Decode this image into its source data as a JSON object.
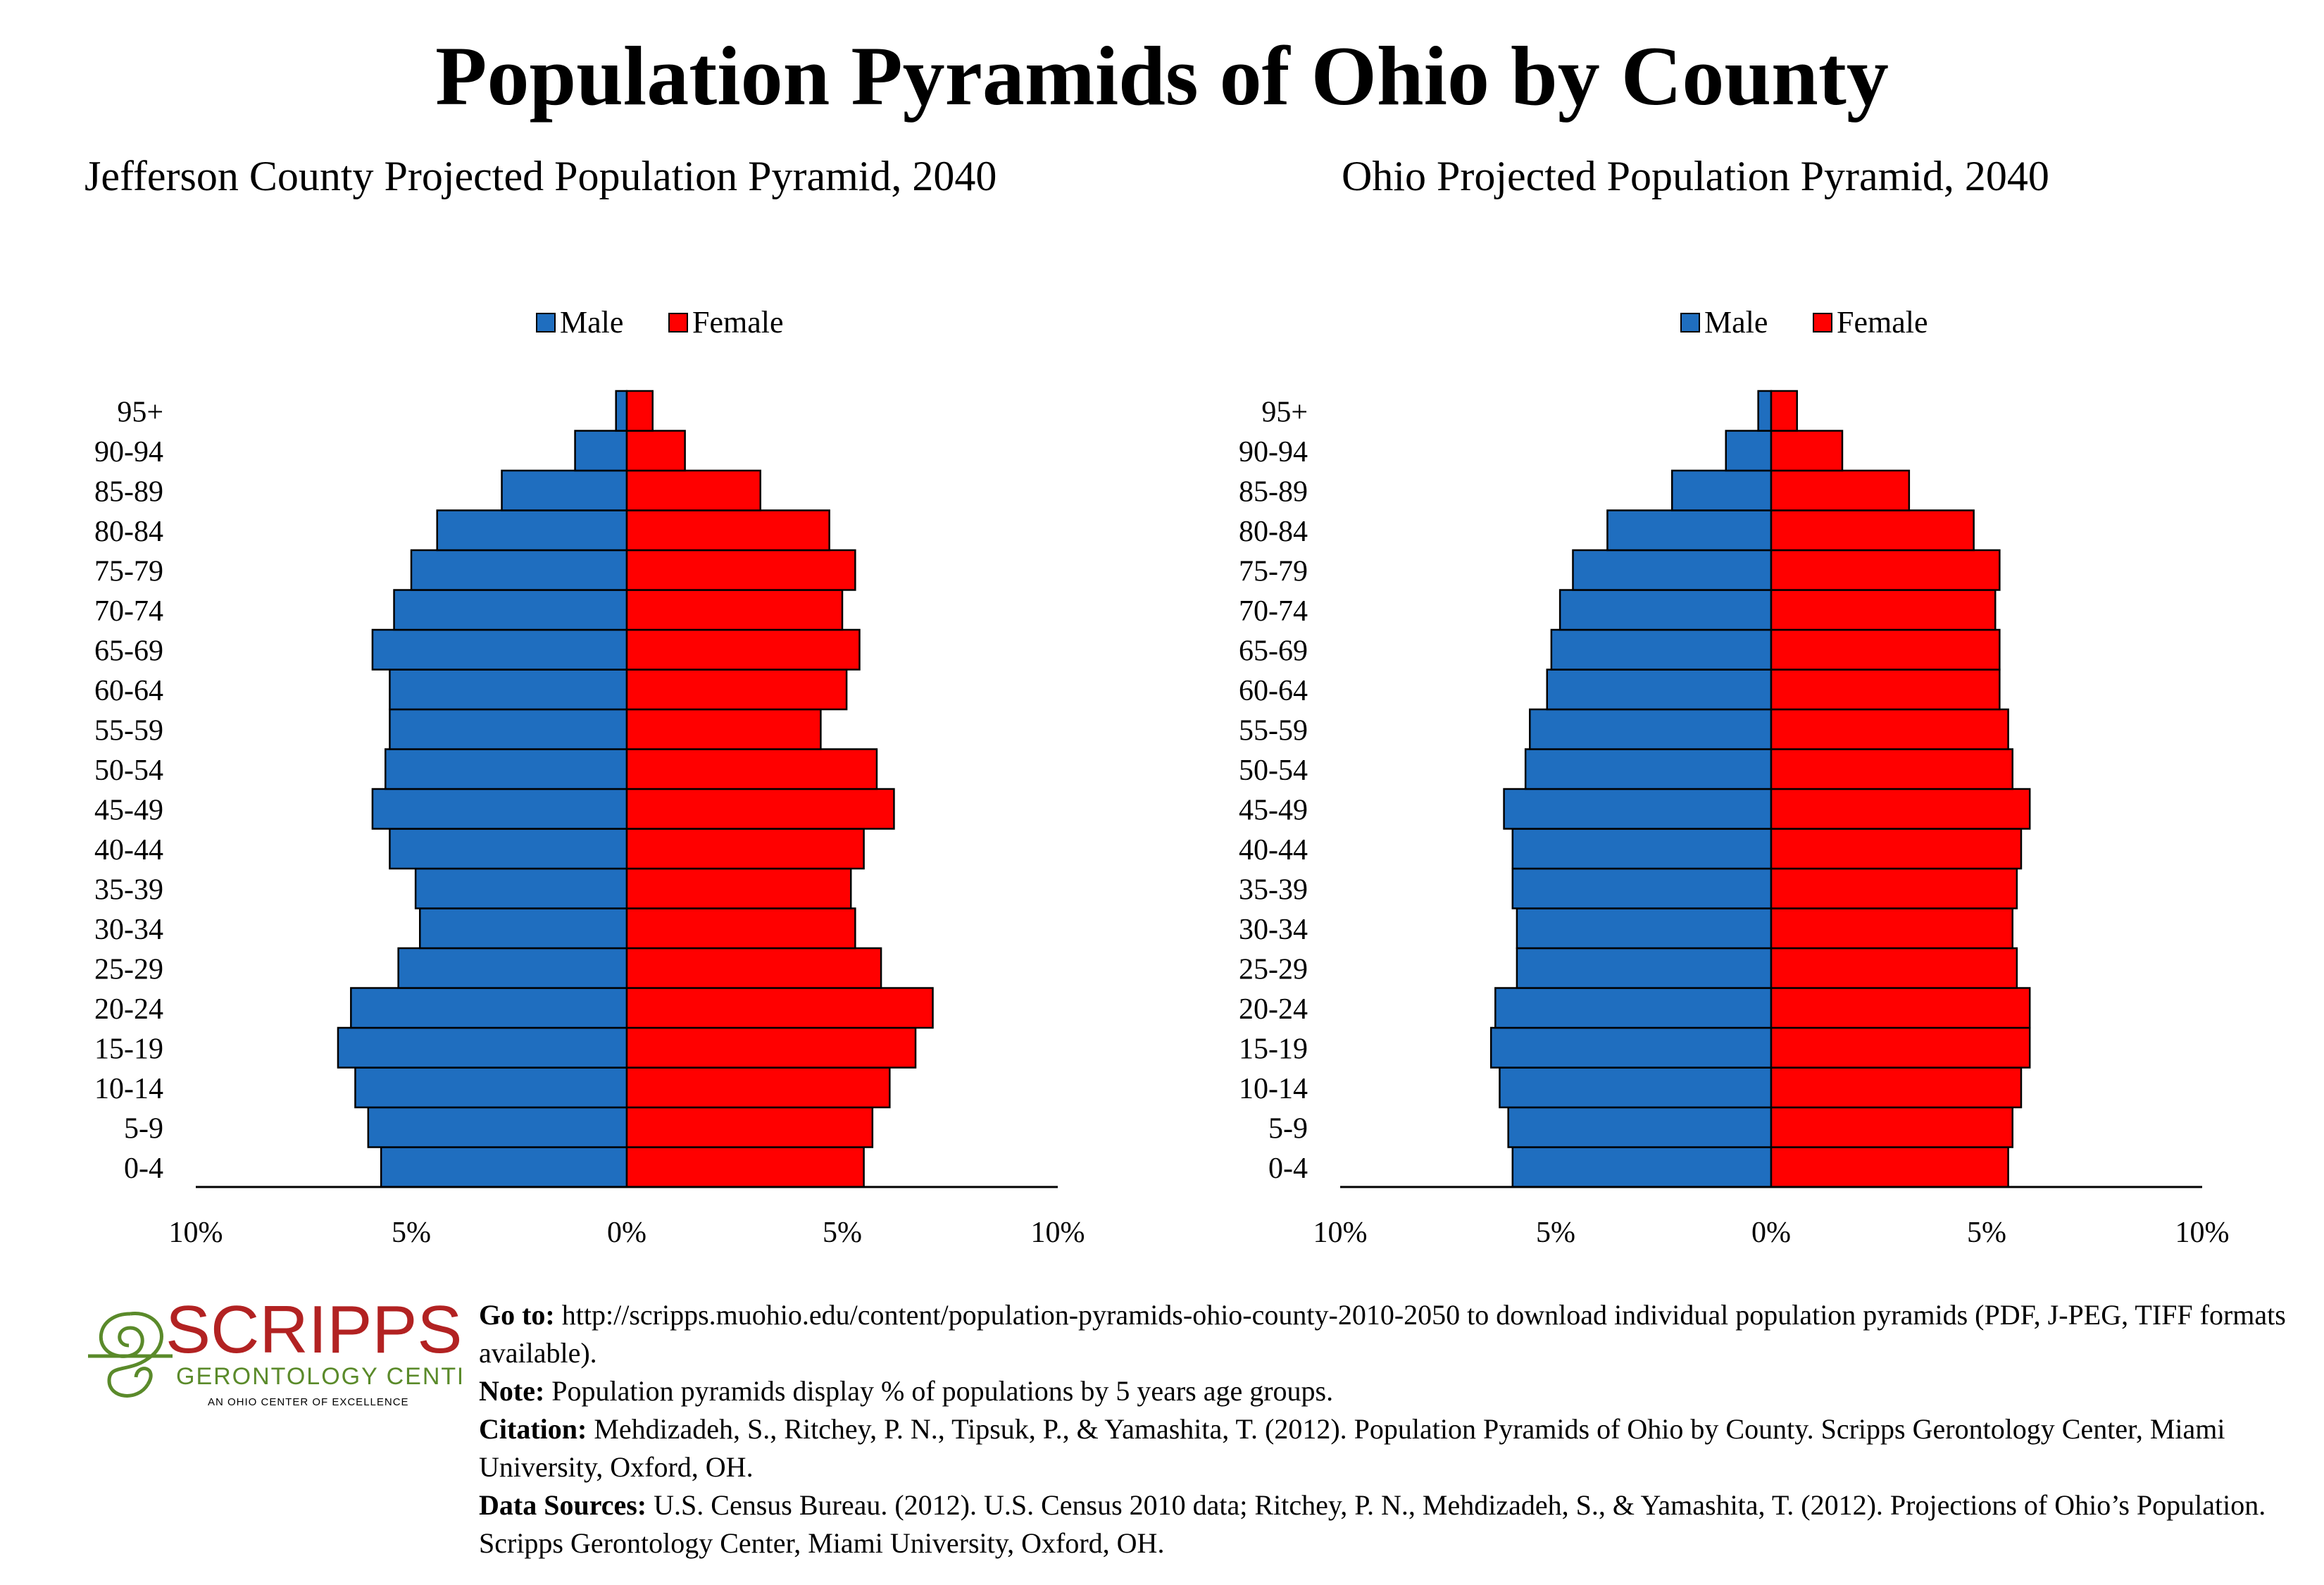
{
  "page": {
    "title": "Population Pyramids of Ohio by County"
  },
  "colors": {
    "male": "#1f6ebf",
    "female": "#ff0000",
    "logo": "#b22222",
    "logo_swirl": "#5a8a2a"
  },
  "chart_data": [
    {
      "type": "bar",
      "orientation": "horizontal-pyramid",
      "title": "Jefferson County Projected Population Pyramid, 2040",
      "legend": [
        "Male",
        "Female"
      ],
      "legend_position": "top",
      "categories": [
        "0-4",
        "5-9",
        "10-14",
        "15-19",
        "20-24",
        "25-29",
        "30-34",
        "35-39",
        "40-44",
        "45-49",
        "50-54",
        "55-59",
        "60-64",
        "65-69",
        "70-74",
        "75-79",
        "80-84",
        "85-89",
        "90-94",
        "95+"
      ],
      "series": [
        {
          "name": "Male",
          "values": [
            5.7,
            6.0,
            6.3,
            6.7,
            6.4,
            5.3,
            4.8,
            4.9,
            5.5,
            5.9,
            5.6,
            5.5,
            5.5,
            5.9,
            5.4,
            5.0,
            4.4,
            2.9,
            1.2,
            0.25
          ]
        },
        {
          "name": "Female",
          "values": [
            5.5,
            5.7,
            6.1,
            6.7,
            7.1,
            5.9,
            5.3,
            5.2,
            5.5,
            6.2,
            5.8,
            4.5,
            5.1,
            5.4,
            5.0,
            5.3,
            4.7,
            3.1,
            1.35,
            0.6
          ]
        }
      ],
      "xlim": [
        -10,
        10
      ],
      "xticks": [
        "10%",
        "5%",
        "0%",
        "5%",
        "10%"
      ]
    },
    {
      "type": "bar",
      "orientation": "horizontal-pyramid",
      "title": "Ohio Projected Population Pyramid, 2040",
      "legend": [
        "Male",
        "Female"
      ],
      "legend_position": "top",
      "categories": [
        "0-4",
        "5-9",
        "10-14",
        "15-19",
        "20-24",
        "25-29",
        "30-34",
        "35-39",
        "40-44",
        "45-49",
        "50-54",
        "55-59",
        "60-64",
        "65-69",
        "70-74",
        "75-79",
        "80-84",
        "85-89",
        "90-94",
        "95+"
      ],
      "series": [
        {
          "name": "Male",
          "values": [
            6.0,
            6.1,
            6.3,
            6.5,
            6.4,
            5.9,
            5.9,
            6.0,
            6.0,
            6.2,
            5.7,
            5.6,
            5.2,
            5.1,
            4.9,
            4.6,
            3.8,
            2.3,
            1.05,
            0.3
          ]
        },
        {
          "name": "Female",
          "values": [
            5.5,
            5.6,
            5.8,
            6.0,
            6.0,
            5.7,
            5.6,
            5.7,
            5.8,
            6.0,
            5.6,
            5.5,
            5.3,
            5.3,
            5.2,
            5.3,
            4.7,
            3.2,
            1.65,
            0.6
          ]
        }
      ],
      "xlim": [
        -10,
        10
      ],
      "xticks": [
        "10%",
        "5%",
        "0%",
        "5%",
        "10%"
      ]
    }
  ],
  "logo": {
    "name": "SCRIPPS",
    "line2": "GERONTOLOGY CENTER",
    "line3": "AN OHIO CENTER OF EXCELLENCE"
  },
  "footer": {
    "goto_label": "Go to:",
    "goto_text": " http://scripps.muohio.edu/content/population-pyramids-ohio-county-2010-2050 to download individual population pyramids (PDF, J-PEG, TIFF formats available).",
    "note_label": "Note:",
    "note_text": " Population pyramids display % of populations by 5 years age groups.",
    "citation_label": "Citation:",
    "citation_text": " Mehdizadeh, S., Ritchey, P. N., Tipsuk, P., & Yamashita, T. (2012). Population Pyramids of Ohio by County. Scripps Gerontology Center, Miami University, Oxford, OH.",
    "sources_label": "Data Sources:",
    "sources_text": " U.S. Census Bureau. (2012). U.S. Census 2010 data; Ritchey, P. N., Mehdizadeh, S., & Yamashita, T. (2012). Projections of Ohio’s Population. Scripps Gerontology Center, Miami University, Oxford, OH."
  }
}
